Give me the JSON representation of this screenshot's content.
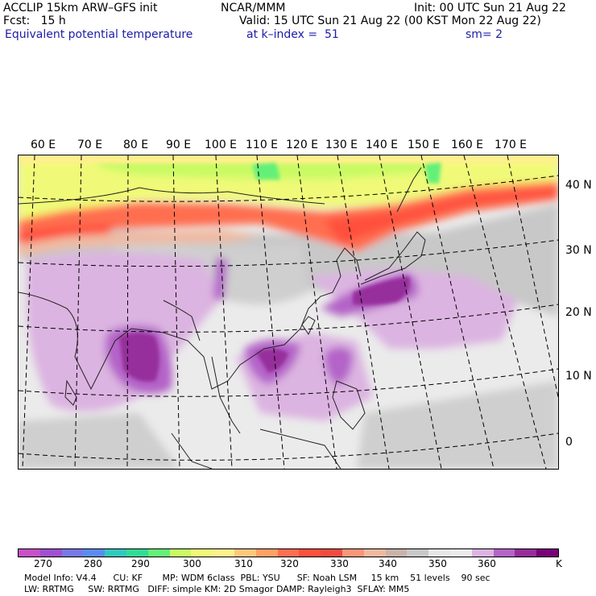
{
  "header": {
    "left_line1": "ACCLIP 15km ARW–GFS init",
    "left_line2": "Fcst:   15 h",
    "left_line3": "Equivalent potential temperature",
    "center_line1": "NCAR/MMM",
    "center_line2": "Valid: 15 UTC Sun 21 Aug 22 (00 KST Mon 22 Aug 22)",
    "center_line3": "at k–index =  51",
    "right_line1": "Init: 00 UTC Sun 21 Aug 22",
    "right_line3": "sm= 2"
  },
  "map": {
    "lon_labels": [
      "60 E",
      "70 E",
      "80 E",
      "90 E",
      "100 E",
      "110 E",
      "120 E",
      "130 E",
      "140 E",
      "150 E",
      "160 E",
      "170 E"
    ],
    "lat_labels": [
      "40 N",
      "30 N",
      "20 N",
      "10 N",
      "0"
    ]
  },
  "colorbar": {
    "colors": [
      "#c850c8",
      "#a050d2",
      "#7878e6",
      "#5a8cf0",
      "#32c8be",
      "#32dc96",
      "#64f078",
      "#c8fa64",
      "#f0fa78",
      "#fff08c",
      "#ffc87d",
      "#ffa064",
      "#ff6e50",
      "#ff503c",
      "#f04b41",
      "#fa9678",
      "#f0b9a0",
      "#c8b4aa",
      "#c8c8c8",
      "#e6e6e6",
      "#ebebeb",
      "#dcb4e1",
      "#b464c8",
      "#962d9b",
      "#780078"
    ],
    "tick_labels": [
      "270",
      "280",
      "290",
      "300",
      "310",
      "320",
      "330",
      "340",
      "350",
      "360"
    ],
    "unit": "K"
  },
  "footer": {
    "line1": "Model Info: V4.4      CU: KF       MP: WDM 6class  PBL: YSU      SF: Noah LSM     15 km    51 levels    90 sec",
    "line2": "LW: RRTMG     SW: RRTMG   DIFF: simple KM: 2D Smagor DAMP: Rayleigh3  SFLAY: MM5"
  }
}
